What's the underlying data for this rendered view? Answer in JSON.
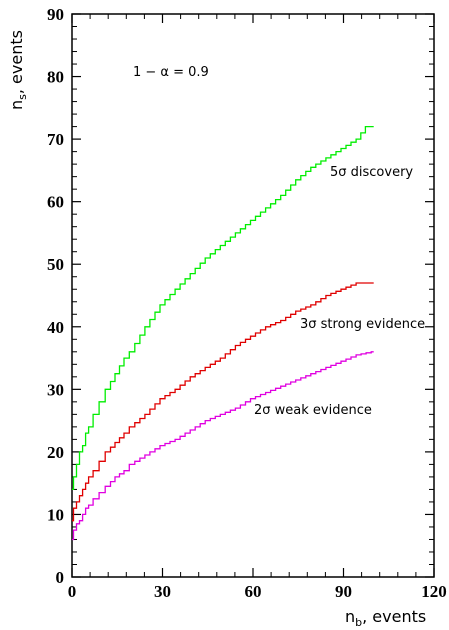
{
  "chart_data": {
    "type": "line",
    "title": "",
    "annotation": "1 − α = 0.9",
    "xlabel": {
      "main": "n",
      "sub": "b",
      "rest": ", events"
    },
    "ylabel": {
      "main": "n",
      "sub": "s",
      "rest": ",  events"
    },
    "xlim": [
      0,
      120
    ],
    "ylim": [
      0,
      90
    ],
    "x_ticks": [
      0,
      30,
      60,
      90,
      120
    ],
    "x_tick_labels": [
      "0",
      "30",
      "60",
      "90",
      "120"
    ],
    "y_ticks": [
      0,
      10,
      20,
      30,
      40,
      50,
      60,
      70,
      80,
      90
    ],
    "y_tick_labels": [
      "0",
      "10",
      "20",
      "30",
      "40",
      "50",
      "60",
      "70",
      "80",
      "90"
    ],
    "grid": false,
    "series": [
      {
        "name": "5σ discovery",
        "color": "#00ee00",
        "x": [
          0,
          1,
          2,
          3,
          4,
          5,
          6,
          8,
          10,
          12,
          15,
          18,
          20,
          25,
          30,
          35,
          40,
          45,
          50,
          55,
          60,
          65,
          70,
          75,
          80,
          85,
          90,
          95,
          98,
          100
        ],
        "values": [
          14,
          16,
          18,
          20,
          21,
          23,
          24,
          26,
          28,
          30,
          32.5,
          35,
          36,
          40,
          43.5,
          46,
          48.5,
          51,
          53,
          55,
          57,
          59,
          61,
          63.5,
          65.5,
          67,
          68.5,
          70,
          72,
          72
        ]
      },
      {
        "name": "3σ strong evidence",
        "color": "#e00000",
        "x": [
          0,
          1,
          2,
          3,
          4,
          5,
          6,
          8,
          10,
          12,
          15,
          18,
          20,
          25,
          30,
          35,
          40,
          45,
          50,
          55,
          60,
          65,
          70,
          75,
          80,
          85,
          90,
          95,
          100
        ],
        "values": [
          9,
          11,
          12,
          13,
          14,
          15,
          16,
          17,
          18.5,
          20,
          21.5,
          23,
          24,
          26,
          28.5,
          30,
          32,
          33.5,
          35,
          37,
          38.5,
          40,
          41,
          42.5,
          43.5,
          45,
          46,
          47,
          47
        ]
      },
      {
        "name": "2σ weak evidence",
        "color": "#e000e0",
        "x": [
          0,
          1,
          2,
          3,
          4,
          5,
          6,
          8,
          10,
          12,
          15,
          18,
          20,
          25,
          30,
          35,
          40,
          45,
          50,
          55,
          60,
          65,
          70,
          75,
          80,
          85,
          90,
          95,
          100
        ],
        "values": [
          6,
          7.5,
          8.5,
          9,
          10,
          11,
          11.5,
          12.5,
          13.5,
          14.5,
          16,
          17,
          18,
          19.5,
          21,
          22,
          23.5,
          25,
          26,
          27,
          28.5,
          29.5,
          30.5,
          31.5,
          32.5,
          33.5,
          34.5,
          35.5,
          36
        ]
      }
    ]
  }
}
